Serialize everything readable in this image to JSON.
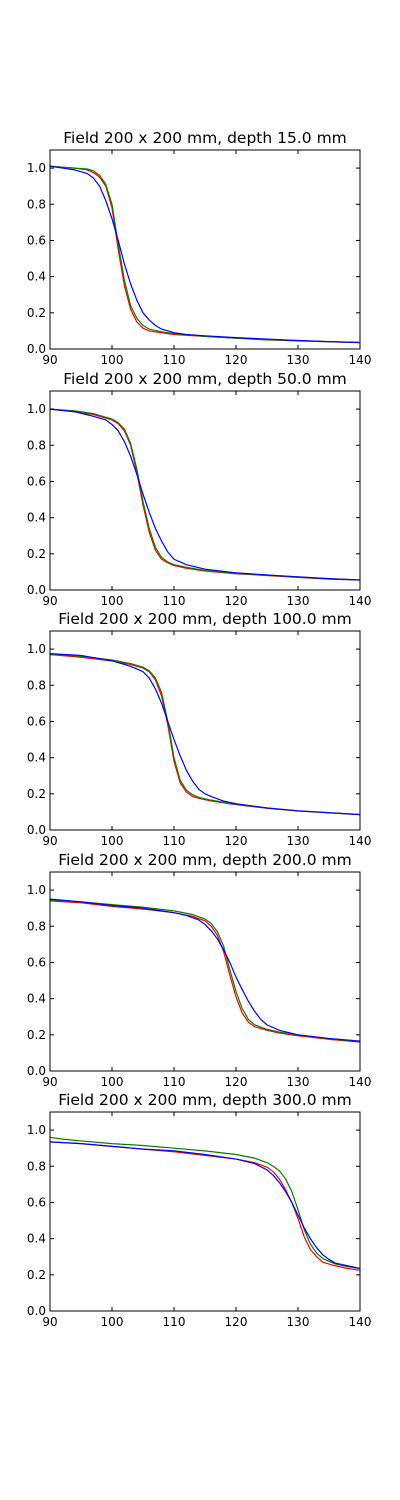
{
  "chart_data": [
    {
      "type": "line",
      "title": "Field 200 x 200 mm, depth 15.0 mm",
      "xlim": [
        90,
        140
      ],
      "ylim": [
        0,
        1.1
      ],
      "xticks": [
        "90",
        "100",
        "110",
        "120",
        "130",
        "140"
      ],
      "yticks": [
        "0.0",
        "0.2",
        "0.4",
        "0.6",
        "0.8",
        "1.0"
      ],
      "grid": false,
      "series": [
        {
          "color": "#ff0000",
          "x": [
            90,
            92,
            94,
            96,
            97,
            98,
            99,
            100,
            101,
            102,
            103,
            104,
            105,
            106,
            108,
            110,
            115,
            120,
            125,
            130,
            135,
            140
          ],
          "y": [
            1.01,
            1.005,
            1.0,
            0.99,
            0.975,
            0.95,
            0.9,
            0.78,
            0.55,
            0.35,
            0.22,
            0.15,
            0.115,
            0.1,
            0.09,
            0.08,
            0.07,
            0.06,
            0.05,
            0.045,
            0.04,
            0.035
          ]
        },
        {
          "color": "#008000",
          "x": [
            90,
            92,
            94,
            96,
            97,
            98,
            99,
            100,
            101,
            102,
            103,
            104,
            105,
            106,
            108,
            110,
            115,
            120,
            125,
            130,
            135,
            140
          ],
          "y": [
            1.01,
            1.005,
            1.0,
            0.995,
            0.985,
            0.96,
            0.91,
            0.8,
            0.58,
            0.38,
            0.24,
            0.17,
            0.13,
            0.11,
            0.095,
            0.085,
            0.07,
            0.06,
            0.052,
            0.046,
            0.04,
            0.036
          ]
        },
        {
          "color": "#0000ff",
          "x": [
            90,
            92,
            94,
            96,
            97,
            98,
            99,
            100,
            101,
            102,
            103,
            104,
            105,
            106,
            107,
            108,
            110,
            112,
            115,
            120,
            125,
            130,
            135,
            140
          ],
          "y": [
            1.01,
            1.0,
            0.99,
            0.97,
            0.945,
            0.9,
            0.82,
            0.72,
            0.6,
            0.47,
            0.36,
            0.27,
            0.2,
            0.16,
            0.13,
            0.11,
            0.09,
            0.08,
            0.073,
            0.063,
            0.055,
            0.047,
            0.041,
            0.036
          ]
        }
      ]
    },
    {
      "type": "line",
      "title": "Field 200 x 200 mm, depth 50.0 mm",
      "xlim": [
        90,
        140
      ],
      "ylim": [
        0,
        1.1
      ],
      "xticks": [
        "90",
        "100",
        "110",
        "120",
        "130",
        "140"
      ],
      "yticks": [
        "0.0",
        "0.2",
        "0.4",
        "0.6",
        "0.8",
        "1.0"
      ],
      "grid": false,
      "series": [
        {
          "color": "#ff0000",
          "x": [
            90,
            94,
            97,
            100,
            101,
            102,
            103,
            104,
            105,
            106,
            107,
            108,
            109,
            110,
            112,
            115,
            120,
            125,
            130,
            135,
            140
          ],
          "y": [
            1.0,
            0.985,
            0.97,
            0.94,
            0.92,
            0.88,
            0.8,
            0.65,
            0.47,
            0.32,
            0.22,
            0.17,
            0.15,
            0.135,
            0.12,
            0.105,
            0.09,
            0.08,
            0.07,
            0.06,
            0.055
          ]
        },
        {
          "color": "#008000",
          "x": [
            90,
            94,
            97,
            100,
            101,
            102,
            103,
            104,
            105,
            106,
            107,
            108,
            109,
            110,
            112,
            115,
            120,
            125,
            130,
            135,
            140
          ],
          "y": [
            1.0,
            0.99,
            0.975,
            0.945,
            0.925,
            0.89,
            0.81,
            0.67,
            0.49,
            0.34,
            0.235,
            0.18,
            0.155,
            0.14,
            0.125,
            0.108,
            0.092,
            0.082,
            0.072,
            0.062,
            0.056
          ]
        },
        {
          "color": "#0000ff",
          "x": [
            90,
            94,
            97,
            99,
            100,
            101,
            102,
            103,
            104,
            105,
            106,
            107,
            108,
            109,
            110,
            112,
            115,
            120,
            125,
            130,
            135,
            140
          ],
          "y": [
            1.0,
            0.985,
            0.96,
            0.94,
            0.915,
            0.88,
            0.82,
            0.74,
            0.64,
            0.53,
            0.43,
            0.34,
            0.27,
            0.21,
            0.17,
            0.14,
            0.115,
            0.095,
            0.083,
            0.073,
            0.063,
            0.055
          ]
        }
      ]
    },
    {
      "type": "line",
      "title": "Field 200 x 200 mm, depth 100.0 mm",
      "xlim": [
        90,
        140
      ],
      "ylim": [
        0,
        1.1
      ],
      "xticks": [
        "90",
        "100",
        "110",
        "120",
        "130",
        "140"
      ],
      "yticks": [
        "0.0",
        "0.2",
        "0.4",
        "0.6",
        "0.8",
        "1.0"
      ],
      "grid": false,
      "series": [
        {
          "color": "#ff0000",
          "x": [
            90,
            95,
            100,
            103,
            105,
            106,
            107,
            108,
            109,
            110,
            111,
            112,
            113,
            114,
            116,
            120,
            125,
            130,
            135,
            140
          ],
          "y": [
            0.97,
            0.955,
            0.935,
            0.915,
            0.895,
            0.875,
            0.83,
            0.74,
            0.58,
            0.38,
            0.26,
            0.21,
            0.185,
            0.175,
            0.16,
            0.14,
            0.12,
            0.105,
            0.095,
            0.085
          ]
        },
        {
          "color": "#008000",
          "x": [
            90,
            95,
            100,
            103,
            105,
            106,
            107,
            108,
            109,
            110,
            111,
            112,
            113,
            114,
            116,
            120,
            125,
            130,
            135,
            140
          ],
          "y": [
            0.97,
            0.96,
            0.94,
            0.92,
            0.9,
            0.88,
            0.84,
            0.76,
            0.6,
            0.4,
            0.275,
            0.22,
            0.195,
            0.18,
            0.165,
            0.142,
            0.122,
            0.106,
            0.096,
            0.086
          ]
        },
        {
          "color": "#0000ff",
          "x": [
            90,
            95,
            100,
            103,
            105,
            106,
            107,
            108,
            109,
            110,
            111,
            112,
            113,
            114,
            115,
            116,
            118,
            120,
            125,
            130,
            135,
            140
          ],
          "y": [
            0.975,
            0.965,
            0.935,
            0.905,
            0.875,
            0.84,
            0.78,
            0.7,
            0.6,
            0.5,
            0.41,
            0.33,
            0.27,
            0.225,
            0.2,
            0.185,
            0.16,
            0.145,
            0.122,
            0.106,
            0.095,
            0.085
          ]
        }
      ]
    },
    {
      "type": "line",
      "title": "Field 200 x 200 mm, depth 200.0 mm",
      "xlim": [
        90,
        140
      ],
      "ylim": [
        0,
        1.1
      ],
      "xticks": [
        "90",
        "100",
        "110",
        "120",
        "130",
        "140"
      ],
      "yticks": [
        "0.0",
        "0.2",
        "0.4",
        "0.6",
        "0.8",
        "1.0"
      ],
      "grid": false,
      "series": [
        {
          "color": "#ff0000",
          "x": [
            90,
            95,
            100,
            105,
            110,
            113,
            115,
            116,
            117,
            118,
            119,
            120,
            121,
            122,
            123,
            125,
            127,
            130,
            135,
            140
          ],
          "y": [
            0.94,
            0.93,
            0.91,
            0.895,
            0.875,
            0.855,
            0.83,
            0.8,
            0.75,
            0.66,
            0.53,
            0.41,
            0.32,
            0.27,
            0.245,
            0.225,
            0.21,
            0.195,
            0.175,
            0.16
          ]
        },
        {
          "color": "#008000",
          "x": [
            90,
            95,
            100,
            105,
            110,
            113,
            115,
            116,
            117,
            118,
            119,
            120,
            121,
            122,
            123,
            125,
            127,
            130,
            135,
            140
          ],
          "y": [
            0.945,
            0.935,
            0.92,
            0.905,
            0.885,
            0.865,
            0.84,
            0.815,
            0.77,
            0.69,
            0.56,
            0.44,
            0.345,
            0.285,
            0.255,
            0.23,
            0.215,
            0.2,
            0.178,
            0.162
          ]
        },
        {
          "color": "#0000ff",
          "x": [
            90,
            95,
            100,
            105,
            108,
            110,
            112,
            114,
            115,
            116,
            117,
            118,
            119,
            120,
            121,
            122,
            123,
            124,
            125,
            127,
            130,
            135,
            140
          ],
          "y": [
            0.95,
            0.935,
            0.915,
            0.9,
            0.885,
            0.875,
            0.86,
            0.835,
            0.81,
            0.775,
            0.73,
            0.67,
            0.6,
            0.52,
            0.45,
            0.385,
            0.33,
            0.285,
            0.255,
            0.225,
            0.2,
            0.18,
            0.165
          ]
        }
      ]
    },
    {
      "type": "line",
      "title": "Field 200 x 200 mm, depth 300.0 mm",
      "xlim": [
        90,
        140
      ],
      "ylim": [
        0,
        1.1
      ],
      "xticks": [
        "90",
        "100",
        "110",
        "120",
        "130",
        "140"
      ],
      "yticks": [
        "0.0",
        "0.2",
        "0.4",
        "0.6",
        "0.8",
        "1.0"
      ],
      "grid": false,
      "series": [
        {
          "color": "#ff0000",
          "x": [
            90,
            95,
            100,
            105,
            110,
            115,
            120,
            123,
            125,
            126,
            127,
            128,
            129,
            130,
            131,
            132,
            133,
            134,
            136,
            138,
            140
          ],
          "y": [
            0.935,
            0.925,
            0.91,
            0.895,
            0.88,
            0.86,
            0.84,
            0.82,
            0.795,
            0.77,
            0.73,
            0.67,
            0.6,
            0.51,
            0.41,
            0.34,
            0.3,
            0.27,
            0.25,
            0.235,
            0.225
          ]
        },
        {
          "color": "#008000",
          "x": [
            90,
            92,
            95,
            100,
            105,
            110,
            115,
            120,
            123,
            125,
            126,
            127,
            128,
            129,
            130,
            131,
            132,
            133,
            134,
            136,
            138,
            140
          ],
          "y": [
            0.96,
            0.95,
            0.94,
            0.925,
            0.915,
            0.9,
            0.885,
            0.865,
            0.845,
            0.82,
            0.8,
            0.775,
            0.73,
            0.66,
            0.56,
            0.45,
            0.37,
            0.32,
            0.29,
            0.26,
            0.245,
            0.235
          ]
        },
        {
          "color": "#0000ff",
          "x": [
            90,
            95,
            100,
            105,
            110,
            115,
            120,
            123,
            125,
            126,
            127,
            128,
            129,
            130,
            131,
            132,
            133,
            134,
            135,
            136,
            138,
            140
          ],
          "y": [
            0.935,
            0.925,
            0.91,
            0.895,
            0.885,
            0.865,
            0.84,
            0.815,
            0.78,
            0.75,
            0.71,
            0.66,
            0.6,
            0.53,
            0.46,
            0.4,
            0.35,
            0.31,
            0.285,
            0.265,
            0.25,
            0.235
          ]
        }
      ]
    }
  ]
}
